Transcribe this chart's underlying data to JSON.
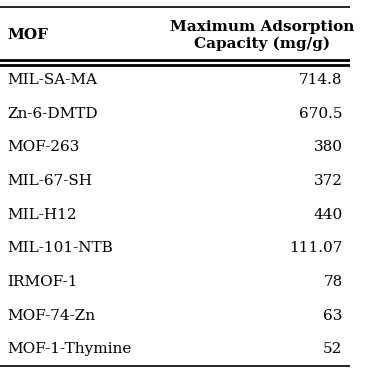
{
  "col_headers": [
    "MOF",
    "Maximum Adsorption\nCapacity (mg/g)"
  ],
  "rows": [
    [
      "MIL-SA-MA",
      "714.8"
    ],
    [
      "Zn-6-DMTD",
      "670.5"
    ],
    [
      "MOF-263",
      "380"
    ],
    [
      "MIL-67-SH",
      "372"
    ],
    [
      "MIL-H12",
      "440"
    ],
    [
      "MIL-101-NTB",
      "111.07"
    ],
    [
      "IRMOF-1",
      "78"
    ],
    [
      "MOF-74-Zn",
      "63"
    ],
    [
      "MOF-1-Thymine",
      "52"
    ]
  ],
  "background_color": "#ffffff",
  "header_fontsize": 11,
  "cell_fontsize": 11,
  "figsize": [
    3.7,
    3.7
  ],
  "dpi": 100
}
